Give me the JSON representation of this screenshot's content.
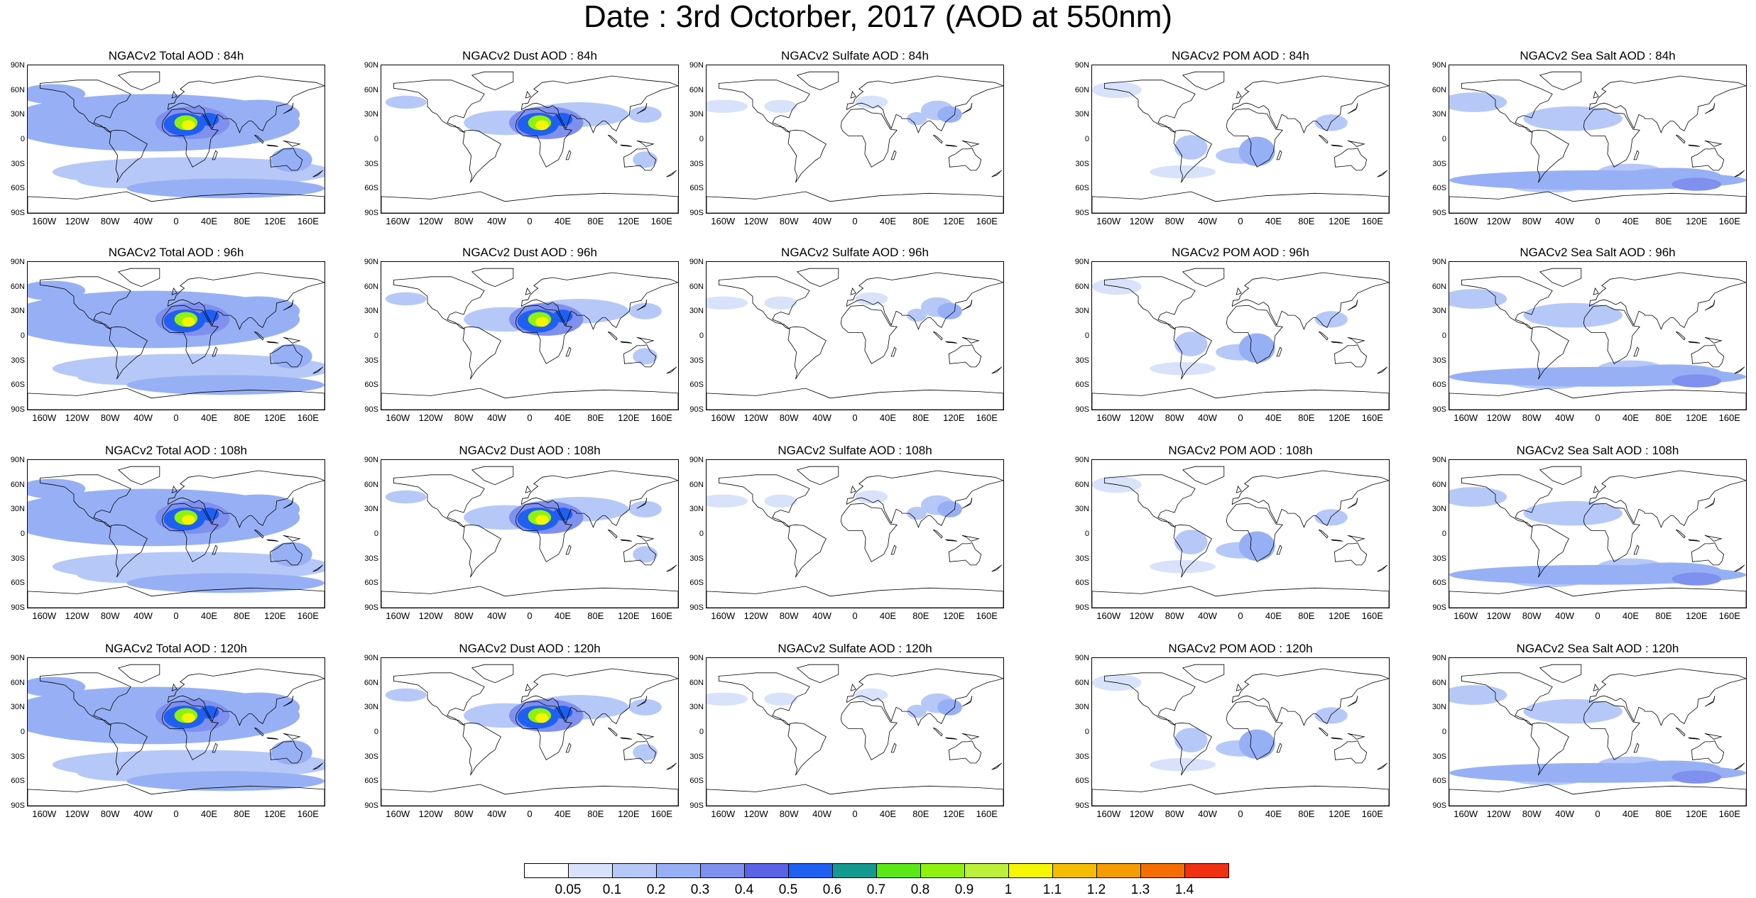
{
  "title": "Date : 3rd Octorber, 2017 (AOD at 550nm)",
  "lat_labels": [
    "90N",
    "60N",
    "30N",
    "0",
    "30S",
    "60S",
    "90S"
  ],
  "lon_labels": [
    "160W",
    "120W",
    "80W",
    "40W",
    "0",
    "40E",
    "80E",
    "120E",
    "160E"
  ],
  "panels": [
    [
      "NGACv2 Total AOD : 84h",
      "NGACv2 Dust AOD : 84h",
      "NGACv2 Sulfate AOD : 84h",
      "NGACv2 POM AOD : 84h",
      "NGACv2 Sea Salt AOD : 84h"
    ],
    [
      "NGACv2 Total AOD : 96h",
      "NGACv2 Dust AOD : 96h",
      "NGACv2 Sulfate AOD : 96h",
      "NGACv2 POM AOD : 96h",
      "NGACv2 Sea Salt AOD : 96h"
    ],
    [
      "NGACv2 Total AOD : 108h",
      "NGACv2 Dust AOD : 108h",
      "NGACv2 Sulfate AOD : 108h",
      "NGACv2 POM AOD : 108h",
      "NGACv2 Sea Salt AOD : 108h"
    ],
    [
      "NGACv2 Total AOD : 120h",
      "NGACv2 Dust AOD : 120h",
      "NGACv2 Sulfate AOD : 120h",
      "NGACv2 POM AOD : 120h",
      "NGACv2 Sea Salt  AOD : 120h"
    ]
  ],
  "colorbar": {
    "labels": [
      "0.05",
      "0.1",
      "0.2",
      "0.3",
      "0.4",
      "0.5",
      "0.6",
      "0.7",
      "0.8",
      "0.9",
      "1",
      "1.1",
      "1.2",
      "1.3",
      "1.4"
    ],
    "colors": [
      "#ffffff",
      "#d8e2fb",
      "#b6c8f8",
      "#97b0f5",
      "#7f90ee",
      "#5a62e6",
      "#1f5ff2",
      "#129a90",
      "#5ce817",
      "#8ef20e",
      "#bdf03a",
      "#f6f600",
      "#f5bd00",
      "#f69c00",
      "#f66e00",
      "#f03010"
    ]
  }
}
